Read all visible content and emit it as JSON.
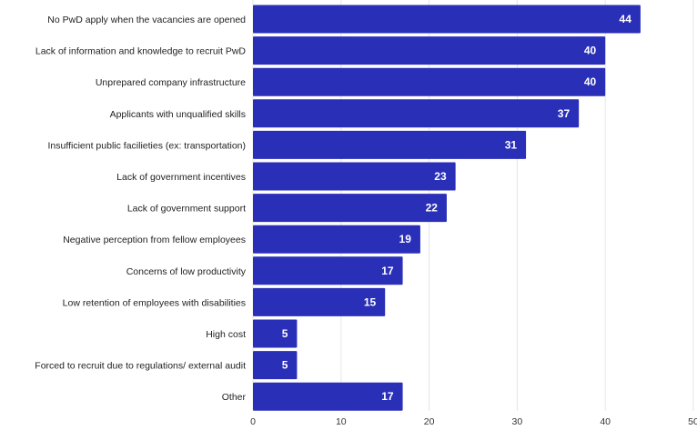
{
  "chart_data": {
    "type": "bar",
    "orientation": "horizontal",
    "categories": [
      "No PwD apply when the vacancies are opened",
      "Lack of information and knowledge to recruit PwD",
      "Unprepared company infrastructure",
      "Applicants with unqualified skills",
      "Insufficient public facilieties (ex: transportation)",
      "Lack of government incentives",
      "Lack of government support",
      "Negative perception from fellow employees",
      "Concerns of low productivity",
      "Low retention of employees with disabilities",
      "High cost",
      "Forced to recruit due to regulations/ external audit",
      "Other"
    ],
    "values": [
      44,
      40,
      40,
      37,
      31,
      23,
      22,
      19,
      17,
      15,
      5,
      5,
      17
    ],
    "data_labels": [
      "44",
      "40",
      "40",
      "37",
      "31",
      "23",
      "22",
      "19",
      "17",
      "15",
      "5",
      "5",
      "17"
    ],
    "xlim": [
      0,
      50
    ],
    "x_ticks": [
      "0",
      "10",
      "20",
      "30",
      "40",
      "50"
    ],
    "title": "",
    "xlabel": "",
    "ylabel": "",
    "grid": "vertical",
    "bar_color": "#2a2fb8",
    "grid_color": "#e6e6e6",
    "label_color": "#ffffff"
  }
}
